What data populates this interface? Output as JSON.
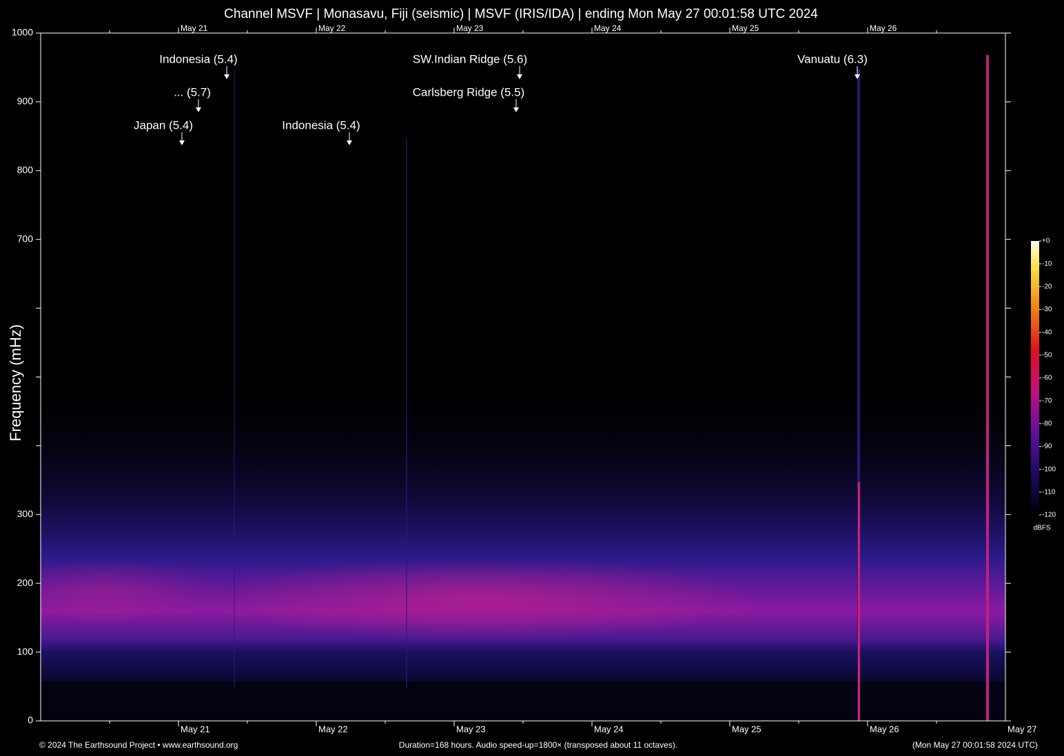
{
  "chart_data": {
    "type": "spectrogram",
    "title": "Channel MSVF | Monasavu, Fiji (seismic) | MSVF (IRIS/IDA) | ending Mon May 27 00:01:58 UTC 2024",
    "ylabel": "Frequency (mHz)",
    "ylim": [
      0,
      1000
    ],
    "yticks": [
      0,
      100,
      200,
      300,
      {
        "value": 400,
        "label": null
      },
      {
        "value": 500,
        "label": null
      },
      {
        "value": 600,
        "label": null
      },
      700,
      800,
      900,
      1000
    ],
    "x_labels": [
      "May 21",
      "May 22",
      "May 23",
      "May 24",
      "May 25",
      "May 26",
      "May 27"
    ],
    "annotations": [
      "Indonesia (5.4)",
      "... (5.7)",
      "Japan (5.4)",
      "Indonesia (5.4)",
      "SW.Indian Ridge (5.6)",
      "Carlsberg Ridge (5.5)",
      "Vanuatu (6.3)"
    ],
    "colorbar": {
      "label": "dBFS",
      "clim": [
        -120,
        0
      ],
      "ticks": [
        {
          "value": 0,
          "label": "+0"
        },
        -10,
        -20,
        -30,
        -40,
        -50,
        -60,
        -70,
        -80,
        -90,
        -100,
        -110,
        -120
      ]
    },
    "footer": [
      "© 2024 The Earthsound Project • www.earthsound.org",
      "Duration=168 hours. Audio speed-up=1800× (transposed about 11 octaves).",
      "(Mon May 27 00:01:58 2024 UTC)"
    ]
  }
}
